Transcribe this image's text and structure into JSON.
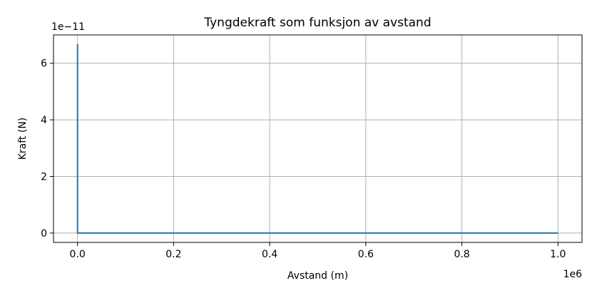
{
  "chart_data": {
    "type": "line",
    "title": "Tyngdekraft som funksjon av avstand",
    "xlabel": "Avstand (m)",
    "ylabel": "Kraft (N)",
    "x_offset_label": "1e6",
    "y_offset_label": "1e−11",
    "xlim": [
      -50000,
      1050000
    ],
    "ylim": [
      -3.3e-12,
      7e-11
    ],
    "x_ticks": [
      {
        "value": 0,
        "label": "0.0"
      },
      {
        "value": 200000,
        "label": "0.2"
      },
      {
        "value": 400000,
        "label": "0.4"
      },
      {
        "value": 600000,
        "label": "0.6"
      },
      {
        "value": 800000,
        "label": "0.8"
      },
      {
        "value": 1000000,
        "label": "1.0"
      }
    ],
    "y_ticks": [
      {
        "value": 0,
        "label": "0"
      },
      {
        "value": 2e-11,
        "label": "2"
      },
      {
        "value": 4e-11,
        "label": "4"
      },
      {
        "value": 6e-11,
        "label": "6"
      }
    ],
    "grid": true,
    "series": [
      {
        "color": "#1f77b4",
        "x": [
          1,
          2,
          5,
          10,
          100,
          1000,
          10000,
          100000,
          500000,
          1000000
        ],
        "y": [
          6.674e-11,
          1.6685e-11,
          2.6696e-12,
          6.674e-13,
          6.674e-15,
          6.674e-17,
          6.674e-19,
          6.674e-21,
          2.6696e-22,
          6.674e-23
        ]
      }
    ]
  }
}
